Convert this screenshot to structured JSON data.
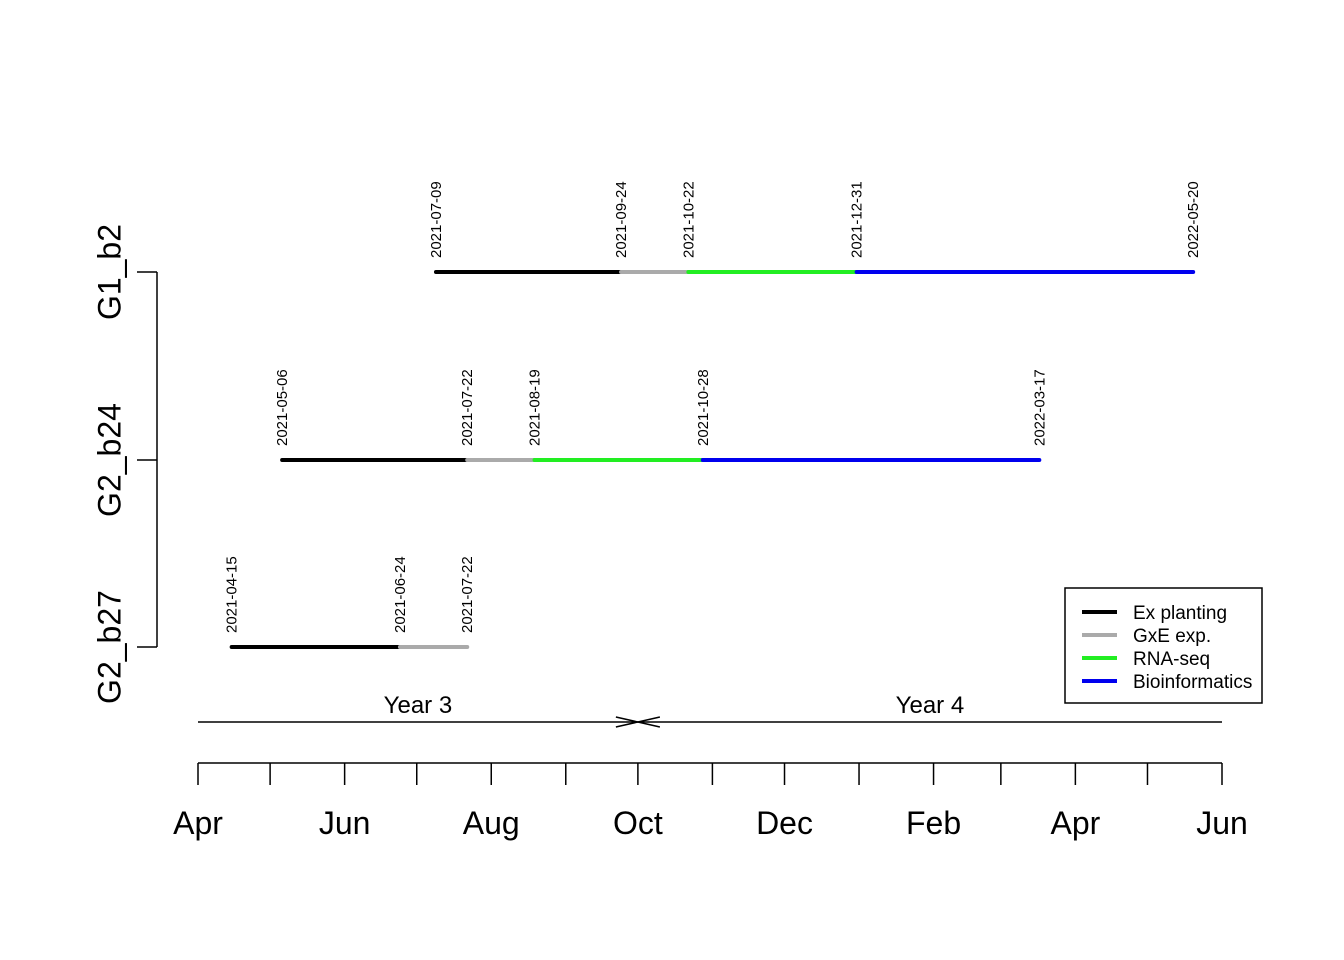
{
  "chart_data": {
    "type": "timeline",
    "colors": {
      "Ex planting": "#000000",
      "GxE exp.": "#aaaaaa",
      "RNA-seq": "#22ee22",
      "Bioinformatics": "#0000ee"
    },
    "x_ticks": [
      "2021-04-01",
      "2021-05-01",
      "2021-06-01",
      "2021-07-01",
      "2021-08-01",
      "2021-09-01",
      "2021-10-01",
      "2021-11-01",
      "2021-12-01",
      "2022-01-01",
      "2022-02-01",
      "2022-03-01",
      "2022-04-01",
      "2022-05-01",
      "2022-06-01"
    ],
    "x_tick_labels": [
      {
        "date": "2021-04-01",
        "label": "Apr"
      },
      {
        "date": "2021-06-01",
        "label": "Jun"
      },
      {
        "date": "2021-08-01",
        "label": "Aug"
      },
      {
        "date": "2021-10-01",
        "label": "Oct"
      },
      {
        "date": "2021-12-01",
        "label": "Dec"
      },
      {
        "date": "2022-02-01",
        "label": "Feb"
      },
      {
        "date": "2022-04-01",
        "label": "Apr"
      },
      {
        "date": "2022-06-01",
        "label": "Jun"
      }
    ],
    "xlim": [
      "2021-04-01",
      "2022-06-01"
    ],
    "rows": [
      {
        "name": "G1_b2",
        "dates": [
          "2021-07-09",
          "2021-09-24",
          "2021-10-22",
          "2021-12-31",
          "2022-05-20"
        ],
        "phases": [
          "Ex planting",
          "GxE exp.",
          "RNA-seq",
          "Bioinformatics"
        ]
      },
      {
        "name": "G2_b24",
        "dates": [
          "2021-05-06",
          "2021-07-22",
          "2021-08-19",
          "2021-10-28",
          "2022-03-17"
        ],
        "phases": [
          "Ex planting",
          "GxE exp.",
          "RNA-seq",
          "Bioinformatics"
        ]
      },
      {
        "name": "G2_b27",
        "dates": [
          "2021-04-15",
          "2021-06-24",
          "2021-07-22"
        ],
        "phases": [
          "Ex planting",
          "GxE exp."
        ]
      }
    ],
    "periods": [
      {
        "label": "Year 3",
        "start": "2021-04-01",
        "end": "2021-10-01"
      },
      {
        "label": "Year 4",
        "start": "2021-10-01",
        "end": "2022-06-01"
      }
    ],
    "legend": {
      "position": "bottom-right",
      "entries": [
        "Ex planting",
        "GxE exp.",
        "RNA-seq",
        "Bioinformatics"
      ]
    }
  }
}
